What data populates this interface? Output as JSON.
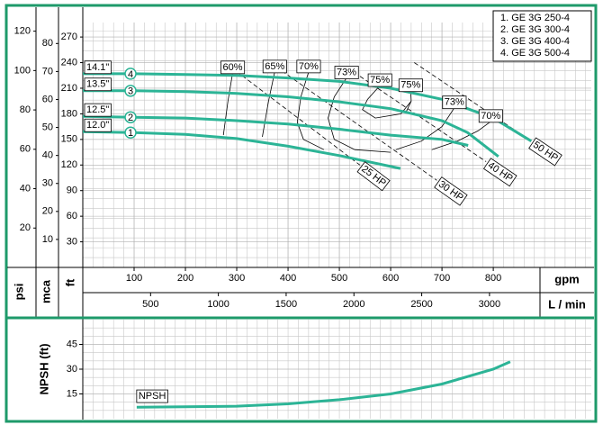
{
  "chart_data": [
    {
      "type": "line",
      "x_label": "gpm",
      "x2_label": "L / min",
      "y_label": "ft",
      "y2_label": "psi",
      "y3_label": "mca",
      "xlim": [
        0,
        991
      ],
      "xticks": [
        100,
        200,
        300,
        400,
        500,
        600,
        700,
        800
      ],
      "x2lim": [
        0,
        3751
      ],
      "x2ticks": [
        500,
        1000,
        1500,
        2000,
        2500,
        3000
      ],
      "ylim": [
        0,
        287
      ],
      "yticks": [
        30,
        60,
        90,
        120,
        150,
        180,
        210,
        240,
        270
      ],
      "y2lim": [
        0,
        124.4
      ],
      "y2ticks": [
        20,
        40,
        60,
        80,
        100,
        120
      ],
      "y3lim": [
        0,
        87.5
      ],
      "y3ticks": [
        10,
        20,
        30,
        40,
        50,
        60,
        70,
        80
      ],
      "grid": true,
      "legend": [
        "1. GE 3G 250-4",
        "2. GE 3G 300-4",
        "3. GE 3G 400-4",
        "4. GE 3G 500-4"
      ],
      "series": [
        {
          "name": "1",
          "label": "12.0\"",
          "color": "#2cb496",
          "x": [
            0,
            100,
            200,
            300,
            400,
            500,
            619
          ],
          "values": [
            159,
            158,
            156,
            151,
            142,
            131,
            116
          ]
        },
        {
          "name": "2",
          "label": "12.5\"",
          "color": "#2cb496",
          "x": [
            0,
            100,
            200,
            300,
            400,
            500,
            600,
            700,
            751
          ],
          "values": [
            177,
            176,
            175,
            172,
            168,
            162,
            155,
            150,
            143
          ]
        },
        {
          "name": "3",
          "label": "13.5\"",
          "color": "#2cb496",
          "x": [
            0,
            100,
            200,
            300,
            400,
            500,
            600,
            700,
            750,
            810
          ],
          "values": [
            207,
            207,
            206,
            204,
            200,
            194,
            186,
            172,
            158,
            130
          ]
        },
        {
          "name": "4",
          "label": "14.1\"",
          "color": "#2cb496",
          "x": [
            0,
            100,
            200,
            300,
            400,
            500,
            600,
            700,
            800,
            874
          ],
          "values": [
            227,
            227,
            226,
            225,
            222,
            218,
            210,
            197,
            175,
            148
          ]
        }
      ],
      "efficiency": [
        {
          "label": "60%",
          "x": [
            292,
            283,
            274
          ],
          "y": [
            228,
            195,
            155
          ]
        },
        {
          "label": "65%",
          "x": [
            374,
            362,
            350
          ],
          "y": [
            229,
            195,
            153
          ]
        },
        {
          "label": "70%",
          "x": [
            440,
            425,
            418,
            430,
            470
          ],
          "y": [
            229,
            200,
            170,
            150,
            138
          ]
        },
        {
          "label": "73%",
          "x": [
            514,
            490,
            478,
            490,
            530,
            600
          ],
          "y": [
            222,
            200,
            175,
            150,
            138,
            135
          ]
        },
        {
          "label": "75%",
          "x": [
            579,
            555,
            545,
            570,
            620,
            640
          ],
          "y": [
            213,
            197,
            185,
            175,
            180,
            195
          ]
        },
        {
          "label": "75%",
          "x": [
            639,
            640,
            630
          ],
          "y": [
            207,
            195,
            182
          ]
        },
        {
          "label": "73%",
          "x": [
            724,
            700,
            660,
            610
          ],
          "y": [
            187,
            165,
            148,
            138
          ]
        },
        {
          "label": "70%",
          "x": [
            795,
            770,
            730,
            680
          ],
          "y": [
            171,
            160,
            148,
            138
          ]
        }
      ],
      "power": [
        {
          "label": "25 HP",
          "x": [
            277,
            540
          ],
          "y": [
            240,
            120
          ]
        },
        {
          "label": "30 HP",
          "x": [
            365,
            690
          ],
          "y": [
            240,
            102
          ]
        },
        {
          "label": "40 HP",
          "x": [
            540,
            786
          ],
          "y": [
            224,
            124
          ]
        },
        {
          "label": "50 HP",
          "x": [
            646,
            874
          ],
          "y": [
            240,
            148
          ]
        }
      ]
    },
    {
      "type": "line",
      "y_label": "NPSH (ft)",
      "xlim": [
        0,
        991
      ],
      "ylim": [
        0,
        60
      ],
      "yticks": [
        15,
        30,
        45
      ],
      "grid": true,
      "series": [
        {
          "name": "NPSH",
          "color": "#2cb496",
          "x": [
            105,
            200,
            300,
            400,
            500,
            600,
            700,
            800,
            833
          ],
          "values": [
            7,
            7.2,
            7.6,
            9,
            11.5,
            15,
            21,
            30,
            34.5
          ]
        }
      ]
    }
  ]
}
